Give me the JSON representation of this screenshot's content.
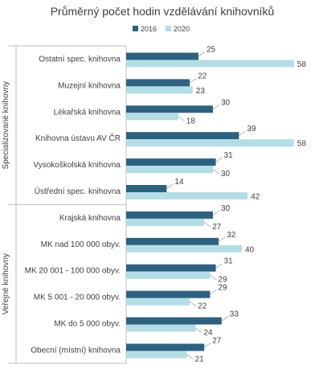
{
  "chart_data": {
    "type": "bar",
    "orientation": "horizontal",
    "title": "Průměrný  počet hodin vzdělávání  knihovníků",
    "legend_position": "top",
    "grid": false,
    "xlim": [
      0,
      60
    ],
    "categories": [
      "Ostatní spec. knihovna",
      "Muzejní knihovna",
      "Lékařská knihovna",
      "Knihovna ústavu AV ČR",
      "Vysokoškolská knihovna",
      "Ústřední spec. knihovna",
      "Krajská knihovna",
      "MK nad 100 000 obyv.",
      "MK 20 001 - 100 000 obyv.",
      "MK  5 001 - 20 000 obyv.",
      "MK do 5 000 obyv.",
      "Obecní (místní) knihovna"
    ],
    "groups": [
      {
        "label": "Specializované knihovny",
        "start": 0,
        "end": 5
      },
      {
        "label": "Veřejné knihovny",
        "start": 6,
        "end": 11
      }
    ],
    "series": [
      {
        "name": "2016",
        "color": "#2e6180",
        "values": [
          25,
          22,
          30,
          39,
          31,
          14,
          30,
          32,
          31,
          29,
          33,
          27
        ]
      },
      {
        "name": "2020",
        "color": "#b4dde5",
        "values": [
          58,
          23,
          18,
          58,
          30,
          42,
          27,
          40,
          29,
          22,
          24,
          21
        ]
      }
    ]
  }
}
